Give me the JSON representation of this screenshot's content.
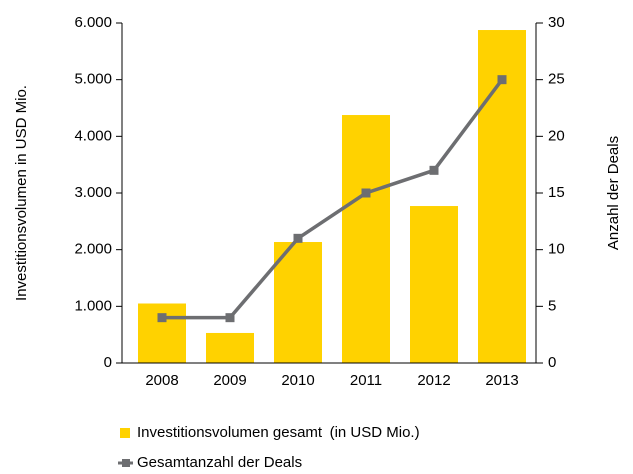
{
  "chart_data": {
    "type": "bar",
    "categories": [
      "2008",
      "2009",
      "2010",
      "2011",
      "2012",
      "2013"
    ],
    "series": [
      {
        "name": "Investitionsvolumen gesamt (in USD Mio.)",
        "color": "#ffd200",
        "values": [
          1050,
          530,
          2135,
          4376,
          2770,
          5876
        ]
      },
      {
        "name": "Gesamtanzahl der Deals",
        "color": "#6d6e71",
        "type": "line",
        "axis": "y2",
        "values": [
          4,
          4,
          11,
          15,
          17,
          25
        ]
      }
    ],
    "ylabel": "Investitionsvolumen in USD Mio.",
    "y2label": "Anzahl der Deals",
    "ylim": [
      0,
      6000
    ],
    "yticks": [
      0,
      {
        "value": 1000,
        "label": "1.000"
      },
      {
        "value": 2000,
        "label": "2.000"
      },
      {
        "value": 3000,
        "label": "3.000"
      },
      {
        "value": 4000,
        "label": "4.000"
      },
      {
        "value": 5000,
        "label": "5.000"
      },
      {
        "value": 6000,
        "label": "6.000"
      }
    ],
    "y2lim": [
      0,
      30
    ],
    "y2ticks": [
      0,
      5,
      10,
      15,
      20,
      25,
      30
    ],
    "grid": false
  }
}
